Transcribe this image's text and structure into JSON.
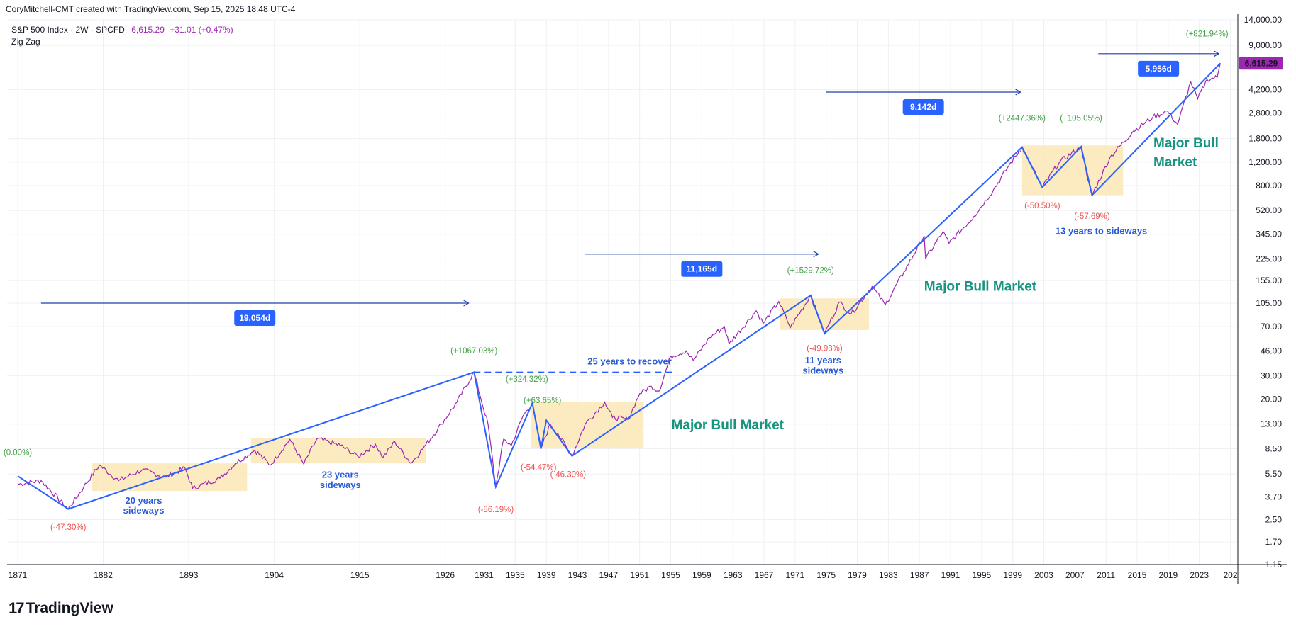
{
  "header": {
    "watermark": "CoryMitchell-CMT created with TradingView.com, Sep 15, 2025 18:48 UTC-4",
    "symbol": "S&P 500 Index · 2W · SPCFD",
    "price": "6,615.29",
    "change": "+31.01 (+0.47%)",
    "indicator": "Zig Zag"
  },
  "footer": {
    "brand": "TradingView"
  },
  "colors": {
    "price_line": "#9c27b0",
    "zigzag": "#2962ff",
    "box_fill": "#fce7b5",
    "up_label": "#43a047",
    "down_label": "#ef5350",
    "bull_text": "#17947f",
    "ann_blue": "#2a5bd7",
    "measure_box": "#2962ff"
  },
  "chart_data": {
    "type": "line",
    "y_scale": "log",
    "ylim": [
      1.15,
      14000
    ],
    "y_ticks": [
      14000,
      9000,
      6615.29,
      4200,
      2800,
      1800,
      1200,
      800,
      520,
      345,
      225,
      155,
      105,
      70,
      46,
      30,
      20,
      13,
      8.5,
      5.5,
      3.7,
      2.5,
      1.7,
      1.15
    ],
    "y_tick_labels": [
      "14,000.00",
      "9,000.00",
      "6,615.29",
      "4,200.00",
      "2,800.00",
      "1,800.00",
      "1,200.00",
      "800.00",
      "520.00",
      "345.00",
      "225.00",
      "155.00",
      "105.00",
      "70.00",
      "46.00",
      "30.00",
      "20.00",
      "13.00",
      "8.50",
      "5.50",
      "3.70",
      "2.50",
      "1.70",
      "1.15"
    ],
    "last_price_label": "6,615.29",
    "x_ticks": [
      "1871",
      "1882",
      "1893",
      "1904",
      "1915",
      "1926",
      "1931",
      "1935",
      "1939",
      "1943",
      "1947",
      "1951",
      "1955",
      "1959",
      "1963",
      "1967",
      "1971",
      "1975",
      "1979",
      "1983",
      "1987",
      "1991",
      "1995",
      "1999",
      "2003",
      "2007",
      "2011",
      "2015",
      "2019",
      "2023",
      "202"
    ],
    "series": [
      {
        "values": [
          [
            1871.0,
            4.6
          ],
          [
            1874.0,
            4.9
          ],
          [
            1877.5,
            3.0
          ],
          [
            1879.5,
            4.4
          ],
          [
            1881.5,
            6.4
          ],
          [
            1884.0,
            4.9
          ],
          [
            1887.0,
            5.9
          ],
          [
            1890.0,
            5.2
          ],
          [
            1892.5,
            6.1
          ],
          [
            1893.5,
            4.3
          ],
          [
            1897.0,
            5.1
          ],
          [
            1899.0,
            6.6
          ],
          [
            1901.5,
            8.3
          ],
          [
            1903.5,
            6.4
          ],
          [
            1906.0,
            10.0
          ],
          [
            1907.8,
            6.5
          ],
          [
            1909.5,
            10.1
          ],
          [
            1912.5,
            9.0
          ],
          [
            1914.8,
            7.4
          ],
          [
            1917.0,
            9.2
          ],
          [
            1918.0,
            7.3
          ],
          [
            1919.5,
            9.6
          ],
          [
            1921.6,
            6.6
          ],
          [
            1923.5,
            9.1
          ],
          [
            1925.5,
            13.0
          ],
          [
            1927.5,
            19.0
          ],
          [
            1929.7,
            31.9
          ],
          [
            1930.5,
            21.0
          ],
          [
            1931.5,
            13.0
          ],
          [
            1932.5,
            4.4
          ],
          [
            1933.5,
            10.0
          ],
          [
            1934.5,
            9.0
          ],
          [
            1936.0,
            15.0
          ],
          [
            1937.2,
            18.7
          ],
          [
            1938.3,
            8.5
          ],
          [
            1939.5,
            13.0
          ],
          [
            1940.5,
            11.0
          ],
          [
            1942.3,
            7.5
          ],
          [
            1944.0,
            13.0
          ],
          [
            1946.5,
            19.0
          ],
          [
            1947.5,
            14.6
          ],
          [
            1949.5,
            14.0
          ],
          [
            1951.0,
            22.0
          ],
          [
            1952.5,
            25.0
          ],
          [
            1953.5,
            23.0
          ],
          [
            1955.0,
            42.0
          ],
          [
            1957.0,
            46.0
          ],
          [
            1957.9,
            39.0
          ],
          [
            1960.0,
            58.0
          ],
          [
            1961.9,
            70.0
          ],
          [
            1962.5,
            52.0
          ],
          [
            1966.0,
            92.0
          ],
          [
            1966.9,
            74.0
          ],
          [
            1968.9,
            108.0
          ],
          [
            1970.4,
            69.0
          ],
          [
            1973.0,
            120.0
          ],
          [
            1974.8,
            62.0
          ],
          [
            1976.7,
            107.0
          ],
          [
            1978.2,
            87.0
          ],
          [
            1980.9,
            140.0
          ],
          [
            1982.6,
            102.0
          ],
          [
            1985.0,
            180.0
          ],
          [
            1987.6,
            336.0
          ],
          [
            1987.8,
            225.0
          ],
          [
            1990.0,
            360.0
          ],
          [
            1990.8,
            295.0
          ],
          [
            1994.0,
            470.0
          ],
          [
            1996.5,
            740.0
          ],
          [
            1998.5,
            1130.0
          ],
          [
            2000.2,
            1552.0
          ],
          [
            2001.5,
            1100.0
          ],
          [
            2002.8,
            777.0
          ],
          [
            2005.0,
            1200.0
          ],
          [
            2007.8,
            1565.0
          ],
          [
            2008.6,
            900.0
          ],
          [
            2009.2,
            677.0
          ],
          [
            2011.5,
            1300.0
          ],
          [
            2014.5,
            2050.0
          ],
          [
            2017.0,
            2600.0
          ],
          [
            2018.9,
            2900.0
          ],
          [
            2020.2,
            2300.0
          ],
          [
            2021.9,
            4800.0
          ],
          [
            2022.8,
            3580.0
          ],
          [
            2024.0,
            5000.0
          ],
          [
            2025.3,
            5200.0
          ],
          [
            2025.7,
            6615.29
          ]
        ]
      }
    ],
    "zigzag_points": [
      [
        1871.0,
        5.3
      ],
      [
        1877.5,
        3.0
      ],
      [
        1929.7,
        31.9
      ],
      [
        1932.5,
        4.4
      ],
      [
        1937.2,
        18.7
      ],
      [
        1938.3,
        8.5
      ],
      [
        1939.0,
        13.9
      ],
      [
        1942.3,
        7.5
      ],
      [
        1973.0,
        120.0
      ],
      [
        1974.8,
        62.0
      ],
      [
        2000.2,
        1552.0
      ],
      [
        2002.8,
        777.0
      ],
      [
        2007.8,
        1565.0
      ],
      [
        2009.2,
        677.0
      ],
      [
        2025.7,
        6615.29
      ]
    ],
    "percent_labels": [
      {
        "text": "(0.00%)",
        "dir": "up",
        "x": 1871.0,
        "y": 7.6
      },
      {
        "text": "(-47.30%)",
        "dir": "down",
        "x": 1877.5,
        "y": 2.1
      },
      {
        "text": "(+1067.03%)",
        "dir": "up",
        "x": 1929.7,
        "y": 44.0
      },
      {
        "text": "(-86.19%)",
        "dir": "down",
        "x": 1932.5,
        "y": 2.85
      },
      {
        "text": "(+324.32%)",
        "dir": "up",
        "x": 1936.5,
        "y": 27.0
      },
      {
        "text": "(+63.65%)",
        "dir": "up",
        "x": 1938.5,
        "y": 18.7
      },
      {
        "text": "(-54.47%)",
        "dir": "down",
        "x": 1938.0,
        "y": 5.9
      },
      {
        "text": "(-46.30%)",
        "dir": "down",
        "x": 1941.8,
        "y": 5.2
      },
      {
        "text": "(+1529.72%)",
        "dir": "up",
        "x": 1973.0,
        "y": 177.0
      },
      {
        "text": "(-49.93%)",
        "dir": "down",
        "x": 1974.8,
        "y": 46.0
      },
      {
        "text": "(+2447.36%)",
        "dir": "up",
        "x": 2000.2,
        "y": 2450.0
      },
      {
        "text": "(-50.50%)",
        "dir": "down",
        "x": 2002.8,
        "y": 540.0
      },
      {
        "text": "(+105.05%)",
        "dir": "up",
        "x": 2007.8,
        "y": 2450.0
      },
      {
        "text": "(-57.69%)",
        "dir": "down",
        "x": 2009.2,
        "y": 450.0
      },
      {
        "text": "(+821.94%)",
        "dir": "up",
        "x": 2024.0,
        "y": 10500.0
      }
    ],
    "sideways_ranges": [
      {
        "x0": 1880.5,
        "x1": 1900.5,
        "y0": 4.1,
        "y1": 6.6
      },
      {
        "x0": 1901.0,
        "x1": 1923.5,
        "y0": 6.6,
        "y1": 10.2
      },
      {
        "x0": 1937.0,
        "x1": 1951.5,
        "y0": 8.6,
        "y1": 19.0
      },
      {
        "x0": 1969.0,
        "x1": 1980.5,
        "y0": 66.0,
        "y1": 114.0
      },
      {
        "x0": 2000.2,
        "x1": 2013.2,
        "y0": 677.0,
        "y1": 1600.0
      }
    ],
    "measures": [
      {
        "label": "19,054d",
        "x0": 1874.0,
        "x1": 1929.0,
        "y": 105.0
      },
      {
        "label": "11,165d",
        "x0": 1944.0,
        "x1": 1974.0,
        "y": 245.0
      },
      {
        "label": "9,142d",
        "x0": 1975.0,
        "x1": 2000.0,
        "y": 4020.0
      },
      {
        "label": "5,956d",
        "x0": 2010.0,
        "x1": 2025.5,
        "y": 7800.0
      }
    ],
    "annotations": {
      "recover_text": "25 years to recover",
      "sideways_20": [
        "20 years",
        "sideways"
      ],
      "sideways_23": [
        "23 years",
        "sideways"
      ],
      "sideways_11": [
        "11 years",
        "sideways"
      ],
      "sideways_13": "13 years to sideways",
      "bull_1": "Major Bull Market",
      "bull_2": "Major Bull Market",
      "bull_3": [
        "Major Bull",
        "Market"
      ]
    }
  }
}
